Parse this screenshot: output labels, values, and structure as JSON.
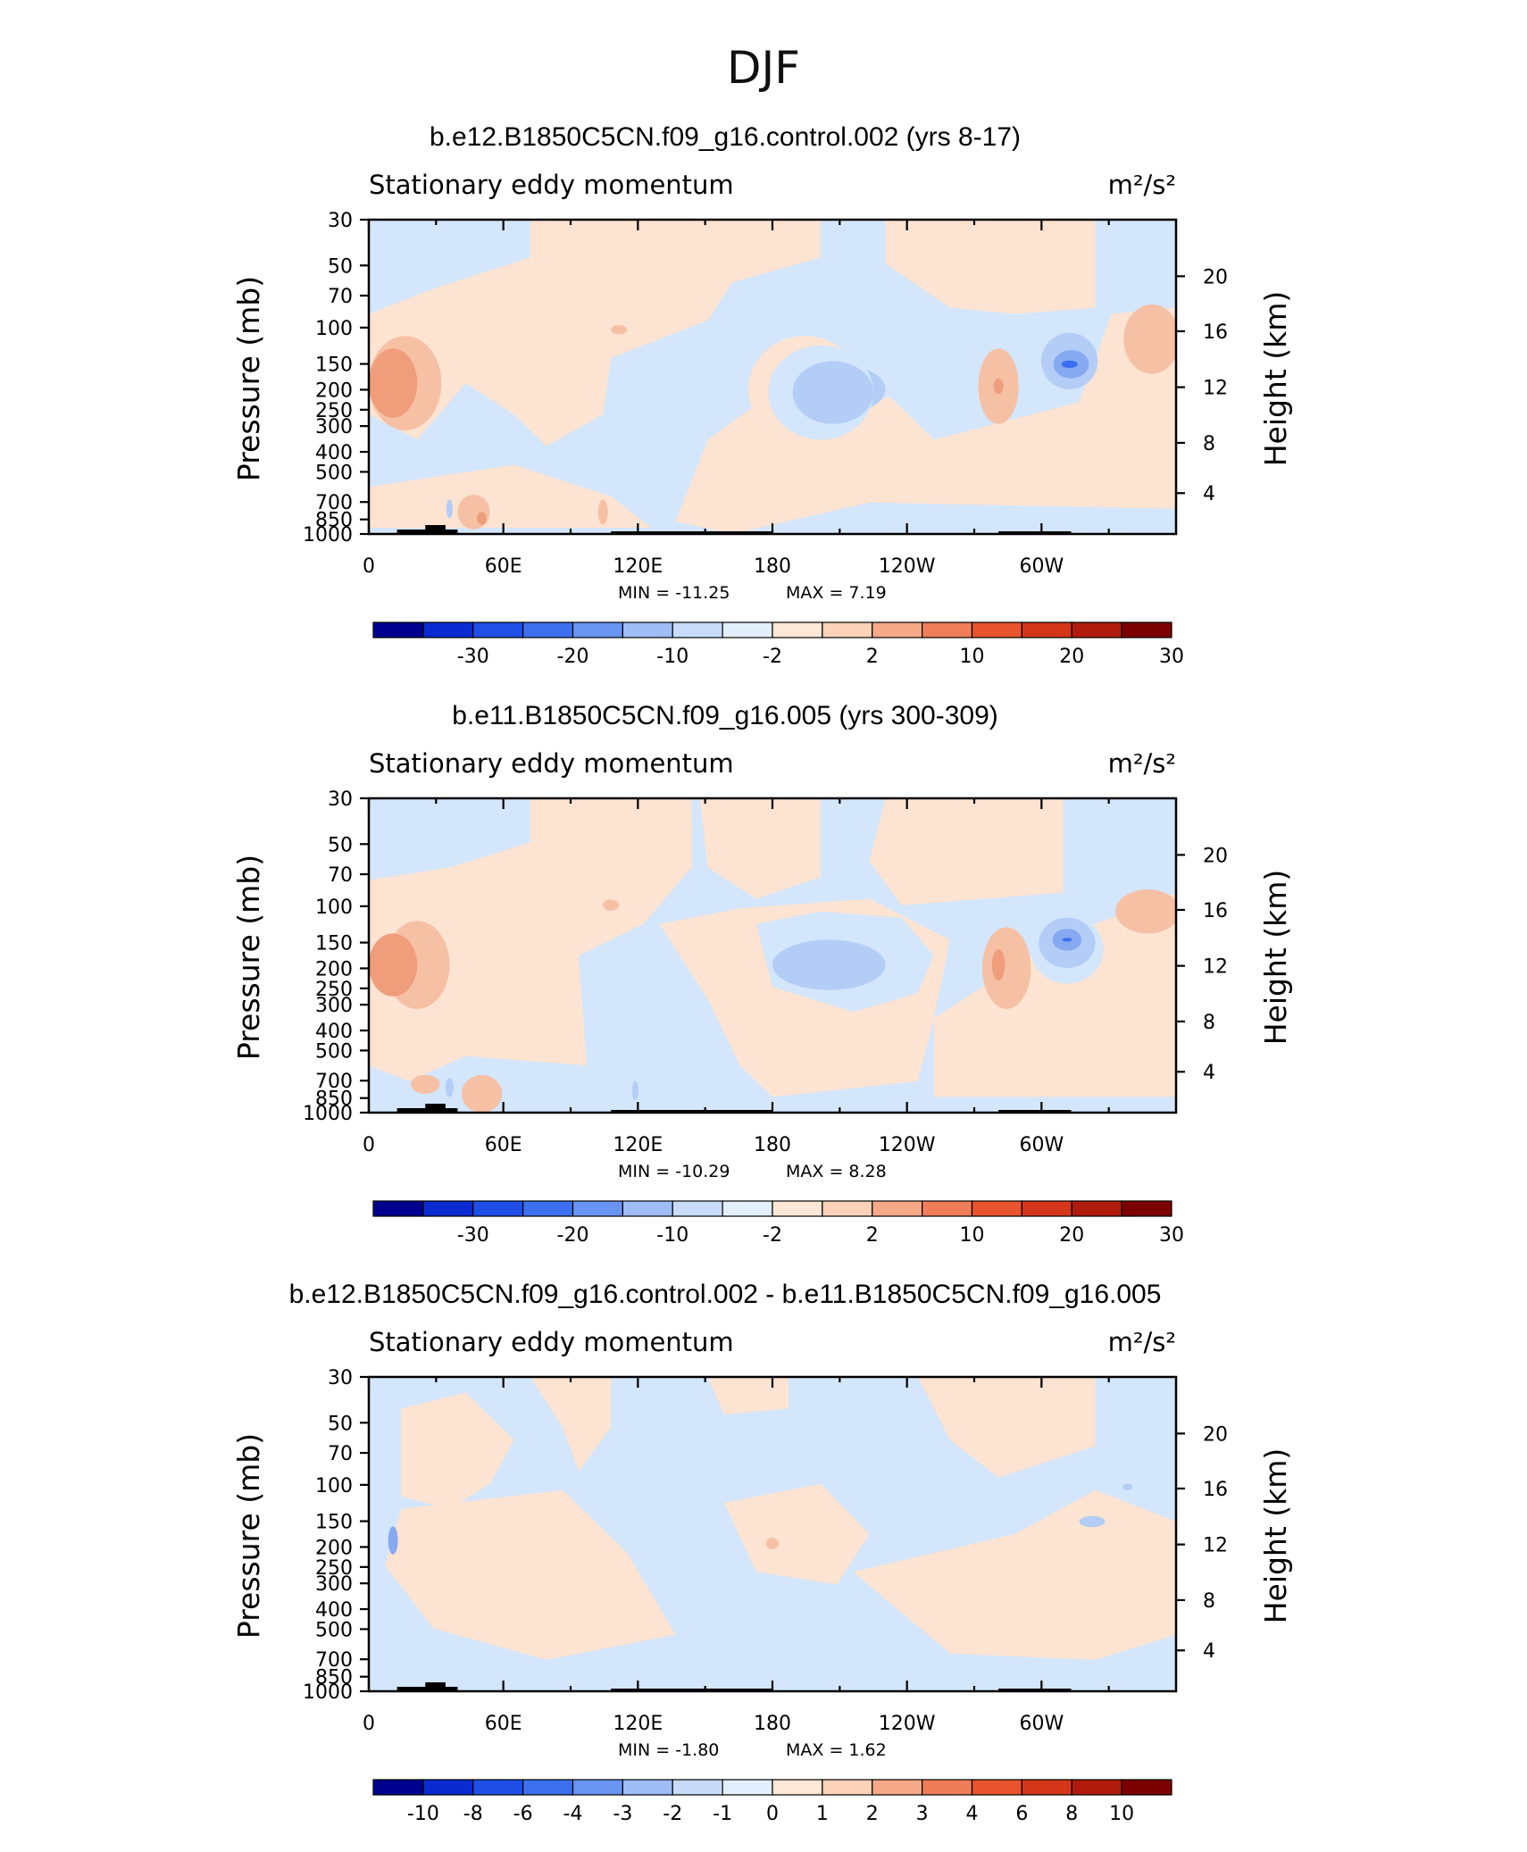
{
  "page": {
    "title": "DJF"
  },
  "colors": {
    "lb3": "#d3e6fb",
    "lb2": "#b4cdf6",
    "lb1": "#86a9f1",
    "bl": "#3c6ff0",
    "bl2": "#2a55e6",
    "lr1": "#fde3d1",
    "lr2": "#f6c0a4",
    "lr3": "#ef9d7b",
    "r1": "#ea7a52",
    "r2": "#e05431",
    "topo": "#000000"
  },
  "chart_data": [
    {
      "type": "contour",
      "title": "b.e12.B1850C5CN.f09_g16.control.002 (yrs 8-17)",
      "left_label": "Stationary eddy momentum",
      "units": "m²/s²",
      "ylabel": "Pressure (mb)",
      "y2label": "Height (km)",
      "xticks": [
        "0",
        "60E",
        "120E",
        "180",
        "120W",
        "60W"
      ],
      "yticks": [
        "30",
        "50",
        "70",
        "100",
        "150",
        "200",
        "250",
        "300",
        "400",
        "500",
        "700",
        "850",
        "1000"
      ],
      "y2ticks": [
        "20",
        "16",
        "12",
        "8",
        "4"
      ],
      "min_text": "MIN = -11.25",
      "max_text": "MAX = 7.19",
      "colorbar_labels": [
        "-30",
        "-20",
        "-10",
        "-2",
        "2",
        "10",
        "20",
        "30"
      ],
      "colorbar_colors": [
        "#00008f",
        "#0a2bcf",
        "#1f4fe6",
        "#3d70ee",
        "#6a94f1",
        "#9ebcf5",
        "#c8dcf9",
        "#e3effc",
        "#fde8d8",
        "#fcd2b9",
        "#f6a988",
        "#f07d5a",
        "#e8542d",
        "#d4361a",
        "#b01c0c",
        "#7d0000"
      ]
    },
    {
      "type": "contour",
      "title": "b.e11.B1850C5CN.f09_g16.005 (yrs 300-309)",
      "left_label": "Stationary eddy momentum",
      "units": "m²/s²",
      "ylabel": "Pressure (mb)",
      "y2label": "Height (km)",
      "xticks": [
        "0",
        "60E",
        "120E",
        "180",
        "120W",
        "60W"
      ],
      "yticks": [
        "30",
        "50",
        "70",
        "100",
        "150",
        "200",
        "250",
        "300",
        "400",
        "500",
        "700",
        "850",
        "1000"
      ],
      "y2ticks": [
        "20",
        "16",
        "12",
        "8",
        "4"
      ],
      "min_text": "MIN = -10.29",
      "max_text": "MAX = 8.28",
      "colorbar_labels": [
        "-30",
        "-20",
        "-10",
        "-2",
        "2",
        "10",
        "20",
        "30"
      ],
      "colorbar_colors": [
        "#00008f",
        "#0a2bcf",
        "#1f4fe6",
        "#3d70ee",
        "#6a94f1",
        "#9ebcf5",
        "#c8dcf9",
        "#e3effc",
        "#fde8d8",
        "#fcd2b9",
        "#f6a988",
        "#f07d5a",
        "#e8542d",
        "#d4361a",
        "#b01c0c",
        "#7d0000"
      ]
    },
    {
      "type": "contour",
      "title": "b.e12.B1850C5CN.f09_g16.control.002 - b.e11.B1850C5CN.f09_g16.005",
      "left_label": "Stationary eddy momentum",
      "units": "m²/s²",
      "ylabel": "Pressure (mb)",
      "y2label": "Height (km)",
      "xticks": [
        "0",
        "60E",
        "120E",
        "180",
        "120W",
        "60W"
      ],
      "yticks": [
        "30",
        "50",
        "70",
        "100",
        "150",
        "200",
        "250",
        "300",
        "400",
        "500",
        "700",
        "850",
        "1000"
      ],
      "y2ticks": [
        "20",
        "16",
        "12",
        "8",
        "4"
      ],
      "min_text": "MIN = -1.80",
      "max_text": "MAX = 1.62",
      "colorbar_labels": [
        "-10",
        "-8",
        "-6",
        "-4",
        "-3",
        "-2",
        "-1",
        "0",
        "1",
        "2",
        "3",
        "4",
        "6",
        "8",
        "10"
      ],
      "colorbar_colors": [
        "#00008f",
        "#0a2bcf",
        "#1f4fe6",
        "#3d70ee",
        "#6a94f1",
        "#9ebcf5",
        "#c8dcf9",
        "#e3effc",
        "#fde8d8",
        "#fcd2b9",
        "#f6a988",
        "#f07d5a",
        "#e8542d",
        "#d4361a",
        "#b01c0c",
        "#7d0000"
      ]
    }
  ]
}
